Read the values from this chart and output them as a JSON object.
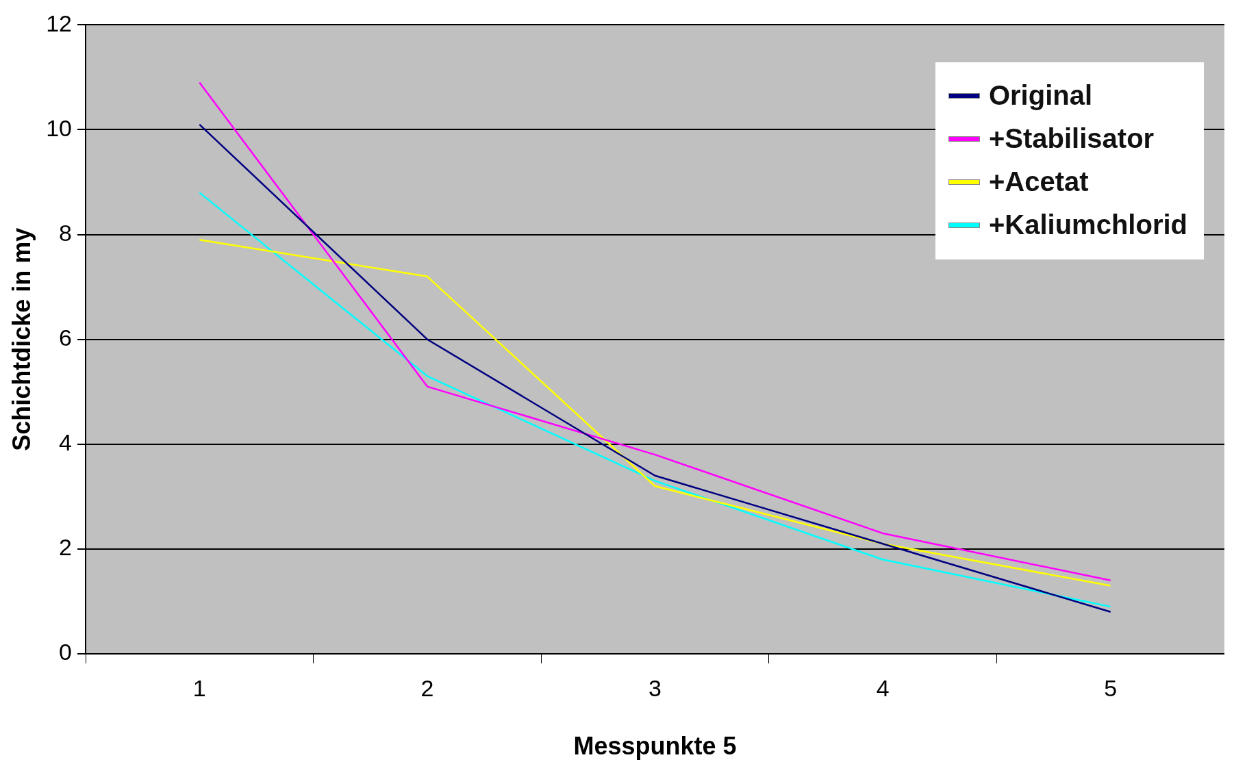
{
  "chart_data": {
    "type": "line",
    "xlabel": "Messpunkte 5",
    "ylabel": "Schichtdicke in my",
    "categories": [
      "1",
      "2",
      "3",
      "4",
      "5"
    ],
    "ylim": [
      0,
      12
    ],
    "yticks": [
      0,
      2,
      4,
      6,
      8,
      10,
      12
    ],
    "grid": "y",
    "legend": "top right",
    "marker": "none",
    "line_style": "solid",
    "series": [
      {
        "name": "Original",
        "color": "#000080",
        "values": [
          10.1,
          6.0,
          3.4,
          2.1,
          0.8
        ]
      },
      {
        "name": "+Stabilisator",
        "color": "#ff00ff",
        "values": [
          10.9,
          5.1,
          3.8,
          2.3,
          1.4
        ]
      },
      {
        "name": "+Acetat",
        "color": "#ffff00",
        "values": [
          7.9,
          7.2,
          3.2,
          2.1,
          1.3
        ]
      },
      {
        "name": "+Kaliumchlorid",
        "color": "#00ffff",
        "values": [
          8.8,
          5.3,
          3.3,
          1.8,
          0.9
        ]
      }
    ]
  }
}
